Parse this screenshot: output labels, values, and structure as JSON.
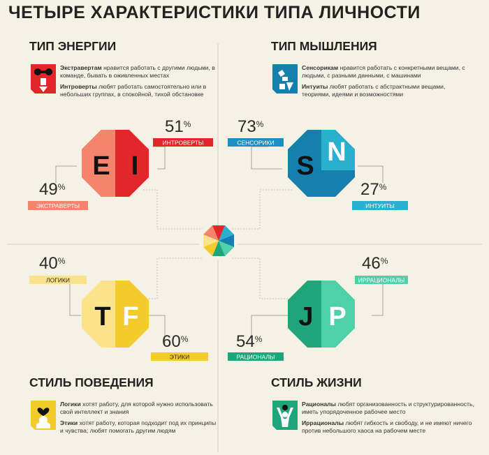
{
  "title": "ЧЕТЫРЕ ХАРАКТЕРИСТИКИ ТИПА ЛИЧНОСТИ",
  "sections": {
    "energy": {
      "title": "ТИП ЭНЕРГИИ",
      "desc1_term": "Экстравертам",
      "desc1_text": " нравится работать с другими людьми, в команде, бывать в оживленных местах",
      "desc2_term": "Интроверты",
      "desc2_text": " любят работать самостоятельно или в небольших группах, в спокойной, тихой обстановке",
      "letters": [
        "E",
        "I"
      ],
      "pct_top": "51",
      "label_top": "ИНТРОВЕРТЫ",
      "pct_bottom": "49",
      "label_bottom": "ЭКСТРАВЕРТЫ"
    },
    "thinking": {
      "title": "ТИП МЫШЛЕНИЯ",
      "desc1_term": "Сенсорикам",
      "desc1_text": " нравится работать с конкретными вещами, с людьми, с разными данными, с машинами",
      "desc2_term": "Интуиты",
      "desc2_text": " любят работать с абстрактными вещами, теориями, идеями и возможностями",
      "letters": [
        "S",
        "N"
      ],
      "pct_top": "73",
      "label_top": "СЕНСОРИКИ",
      "pct_bottom": "27",
      "label_bottom": "ИНТУИТЫ"
    },
    "behavior": {
      "title": "СТИЛЬ ПОВЕДЕНИЯ",
      "desc1_term": "Логики",
      "desc1_text": " хотят работу, для которой нужно использовать свой интеллект и знания",
      "desc2_term": "Этики",
      "desc2_text": " хотят работу, которая подходит под их принципы и чувства; любят помогать другим людям",
      "letters": [
        "T",
        "F"
      ],
      "pct_top": "40",
      "label_top": "ЛОГИКИ",
      "pct_bottom": "60",
      "label_bottom": "ЭТИКИ"
    },
    "life": {
      "title": "СТИЛЬ ЖИЗНИ",
      "desc1_term": "Рационалы",
      "desc1_text": " любят организованность и структурированность, иметь упорядоченное рабочее место",
      "desc2_term": "Иррационалы",
      "desc2_text": " любят гибкость и свободу, и не имеют ничего против небольшого хаоса на рабочем месте",
      "letters": [
        "J",
        "P"
      ],
      "pct_top": "46",
      "label_top": "ИРРАЦИОНАЛЫ",
      "pct_bottom": "54",
      "label_bottom": "РАЦИОНАЛЫ"
    }
  },
  "percent_sign": "%",
  "colors": {
    "background": "#f5f1e4",
    "red_dark": "#e2272b",
    "red_light": "#f5846c",
    "blue_dark": "#157fae",
    "blue_light": "#2ab0cf",
    "yellow_dark": "#f4cb2c",
    "yellow_light": "#fbe38a",
    "green_dark": "#1fa57a",
    "green_light": "#4ed0a8",
    "energy_label": "#e2272b",
    "thinking_label": "#1c8fc0",
    "behavior_label": "#f7cf2c",
    "life_label": "#1fa57a"
  },
  "icons": [
    "extrovert-introvert-icon",
    "sensor-intuit-icon",
    "logic-ethics-icon",
    "rational-irrational-icon",
    "color-wheel-icon"
  ]
}
